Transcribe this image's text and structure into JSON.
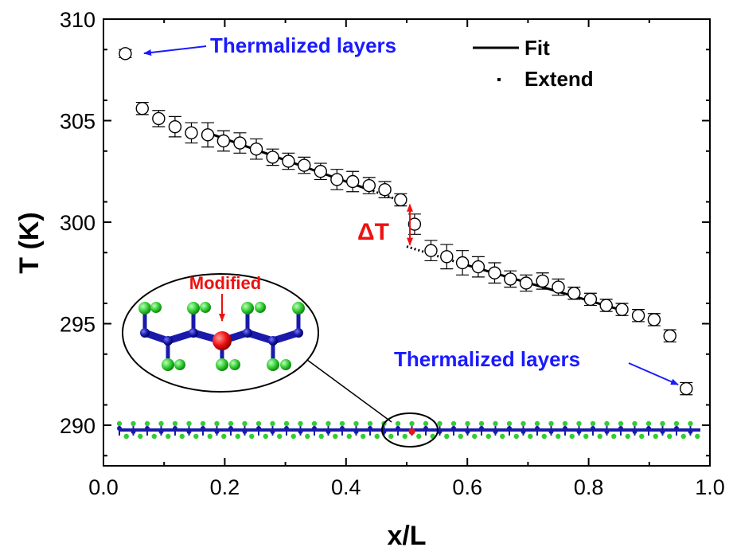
{
  "chart_data": {
    "type": "scatter",
    "xlabel": "x/L",
    "ylabel": "T (K)",
    "xlim": [
      0.0,
      1.0
    ],
    "ylim": [
      288,
      310
    ],
    "x_ticks": [
      "0.0",
      "0.2",
      "0.4",
      "0.6",
      "0.8",
      "1.0"
    ],
    "y_ticks": [
      "290",
      "295",
      "300",
      "305",
      "310"
    ],
    "x_tick_values": [
      0.0,
      0.2,
      0.4,
      0.6,
      0.8,
      1.0
    ],
    "y_tick_values": [
      290,
      295,
      300,
      305,
      310
    ],
    "series": [
      {
        "marker": "open-circle",
        "points": [
          {
            "x": 0.036,
            "y": 308.3,
            "err": 0.2
          },
          {
            "x": 0.064,
            "y": 305.6,
            "err": 0.3
          },
          {
            "x": 0.091,
            "y": 305.1,
            "err": 0.4
          },
          {
            "x": 0.118,
            "y": 304.7,
            "err": 0.5
          },
          {
            "x": 0.145,
            "y": 304.4,
            "err": 0.5
          },
          {
            "x": 0.172,
            "y": 304.3,
            "err": 0.6
          },
          {
            "x": 0.198,
            "y": 304.0,
            "err": 0.5
          },
          {
            "x": 0.225,
            "y": 303.9,
            "err": 0.5
          },
          {
            "x": 0.252,
            "y": 303.6,
            "err": 0.5
          },
          {
            "x": 0.279,
            "y": 303.2,
            "err": 0.4
          },
          {
            "x": 0.305,
            "y": 303.0,
            "err": 0.4
          },
          {
            "x": 0.331,
            "y": 302.8,
            "err": 0.4
          },
          {
            "x": 0.358,
            "y": 302.5,
            "err": 0.4
          },
          {
            "x": 0.385,
            "y": 302.1,
            "err": 0.5
          },
          {
            "x": 0.411,
            "y": 302.0,
            "err": 0.5
          },
          {
            "x": 0.438,
            "y": 301.8,
            "err": 0.4
          },
          {
            "x": 0.464,
            "y": 301.6,
            "err": 0.4
          },
          {
            "x": 0.49,
            "y": 301.1,
            "err": 0.3
          },
          {
            "x": 0.513,
            "y": 299.9,
            "err": 0.5
          },
          {
            "x": 0.54,
            "y": 298.6,
            "err": 0.5
          },
          {
            "x": 0.566,
            "y": 298.3,
            "err": 0.6
          },
          {
            "x": 0.592,
            "y": 298.0,
            "err": 0.6
          },
          {
            "x": 0.618,
            "y": 297.8,
            "err": 0.5
          },
          {
            "x": 0.645,
            "y": 297.5,
            "err": 0.5
          },
          {
            "x": 0.671,
            "y": 297.2,
            "err": 0.4
          },
          {
            "x": 0.697,
            "y": 297.0,
            "err": 0.4
          },
          {
            "x": 0.724,
            "y": 297.1,
            "err": 0.4
          },
          {
            "x": 0.75,
            "y": 296.8,
            "err": 0.4
          },
          {
            "x": 0.776,
            "y": 296.5,
            "err": 0.3
          },
          {
            "x": 0.803,
            "y": 296.2,
            "err": 0.3
          },
          {
            "x": 0.829,
            "y": 295.9,
            "err": 0.3
          },
          {
            "x": 0.855,
            "y": 295.7,
            "err": 0.3
          },
          {
            "x": 0.882,
            "y": 295.4,
            "err": 0.3
          },
          {
            "x": 0.908,
            "y": 295.2,
            "err": 0.3
          },
          {
            "x": 0.934,
            "y": 294.4,
            "err": 0.3
          },
          {
            "x": 0.961,
            "y": 291.8,
            "err": 0.3
          }
        ]
      }
    ],
    "fit_lines": [
      {
        "kind": "solid",
        "x": [
          0.172,
          0.438
        ],
        "y": [
          304.4,
          301.6
        ]
      },
      {
        "kind": "dotted",
        "x": [
          0.438,
          0.5
        ],
        "y": [
          301.6,
          300.95
        ]
      },
      {
        "kind": "dotted",
        "x": [
          0.5,
          0.592
        ],
        "y": [
          298.8,
          297.95
        ]
      },
      {
        "kind": "solid",
        "x": [
          0.592,
          0.862
        ],
        "y": [
          297.95,
          295.6
        ]
      }
    ],
    "legend": {
      "position": "top-right",
      "entries": [
        {
          "label": "Fit",
          "style": "solid"
        },
        {
          "label": "Extend",
          "style": "dotted"
        }
      ]
    },
    "grid": false,
    "annotations": {
      "thermalized_top": "Thermalized layers",
      "thermalized_bottom": "Thermalized layers",
      "delta_t": "ΔT",
      "modified": "Modified",
      "delta_t_range": [
        298.8,
        300.95
      ]
    }
  },
  "colors": {
    "annotation_blue": "#1a1aff",
    "annotation_red": "#ee1111",
    "atom_blue": "#1a1aaa",
    "atom_green": "#33cc33",
    "atom_red": "#ee1111"
  }
}
